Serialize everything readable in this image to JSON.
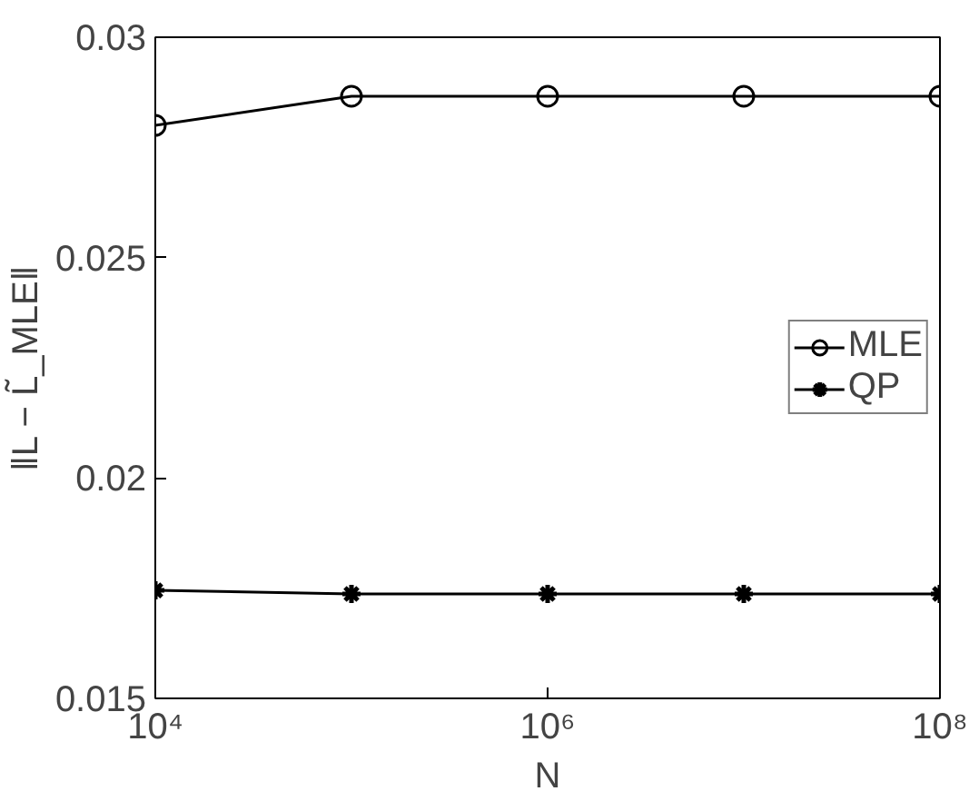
{
  "chart_data": {
    "type": "line",
    "xlabel": "N",
    "ylabel": "‖L − L̃_MLE‖",
    "x": [
      10000,
      100000,
      1000000,
      10000000,
      100000000
    ],
    "series": [
      {
        "name": "MLE",
        "color": "#000000",
        "marker": "circle",
        "values": [
          0.028,
          0.02866,
          0.02866,
          0.02866,
          0.02866
        ]
      },
      {
        "name": "QP",
        "color": "#000000",
        "marker": "cross",
        "values": [
          0.01745,
          0.01737,
          0.01737,
          0.01737,
          0.01737
        ]
      }
    ],
    "log": "x",
    "xlim": [
      10000,
      100000000
    ],
    "xticks": [
      {
        "value": 10000,
        "label": "10⁴"
      },
      {
        "value": 1000000,
        "label": "10⁶"
      },
      {
        "value": 100000000,
        "label": "10⁸"
      }
    ],
    "ylim": [
      0.015,
      0.03
    ],
    "yticks": [
      {
        "value": 0.015,
        "label": "0.015"
      },
      {
        "value": 0.02,
        "label": "0.02"
      },
      {
        "value": 0.025,
        "label": "0.025"
      },
      {
        "value": 0.03,
        "label": "0.03"
      }
    ],
    "grid": false,
    "legend": "right",
    "line_style": "solid"
  }
}
